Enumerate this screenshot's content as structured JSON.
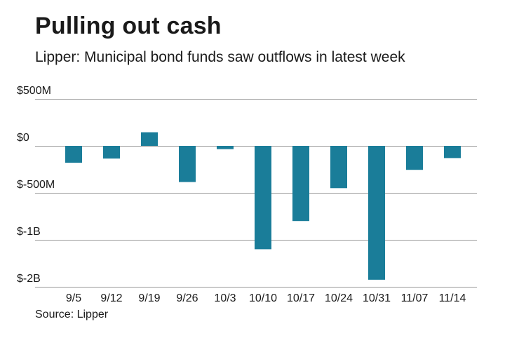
{
  "chart_data": {
    "type": "bar",
    "title": "Pulling out cash",
    "subtitle": "Lipper: Municipal bond funds saw outflows in latest week",
    "source": "Source: Lipper",
    "xlabel": "",
    "ylabel": "",
    "categories": [
      "9/5",
      "9/12",
      "9/19",
      "9/26",
      "10/3",
      "10/10",
      "10/17",
      "10/24",
      "10/31",
      "11/07",
      "11/14"
    ],
    "values": [
      -180,
      -135,
      145,
      -385,
      -35,
      -1200,
      -800,
      -450,
      -1850,
      -255,
      -130
    ],
    "units": "$ millions",
    "y_ticks": [
      {
        "value": 500,
        "label": "$500M"
      },
      {
        "value": 0,
        "label": "$0"
      },
      {
        "value": -500,
        "label": "$-500M"
      },
      {
        "value": -1000,
        "label": "$-1B"
      },
      {
        "value": -2000,
        "label": "$-2B"
      }
    ],
    "ylim": [
      -2000,
      500
    ],
    "y_scale_note": "non-linear axis: equal spacing between $500M, $0, $-500M, $-1B, $-2B",
    "bar_color": "#1a7d99",
    "grid": true
  }
}
